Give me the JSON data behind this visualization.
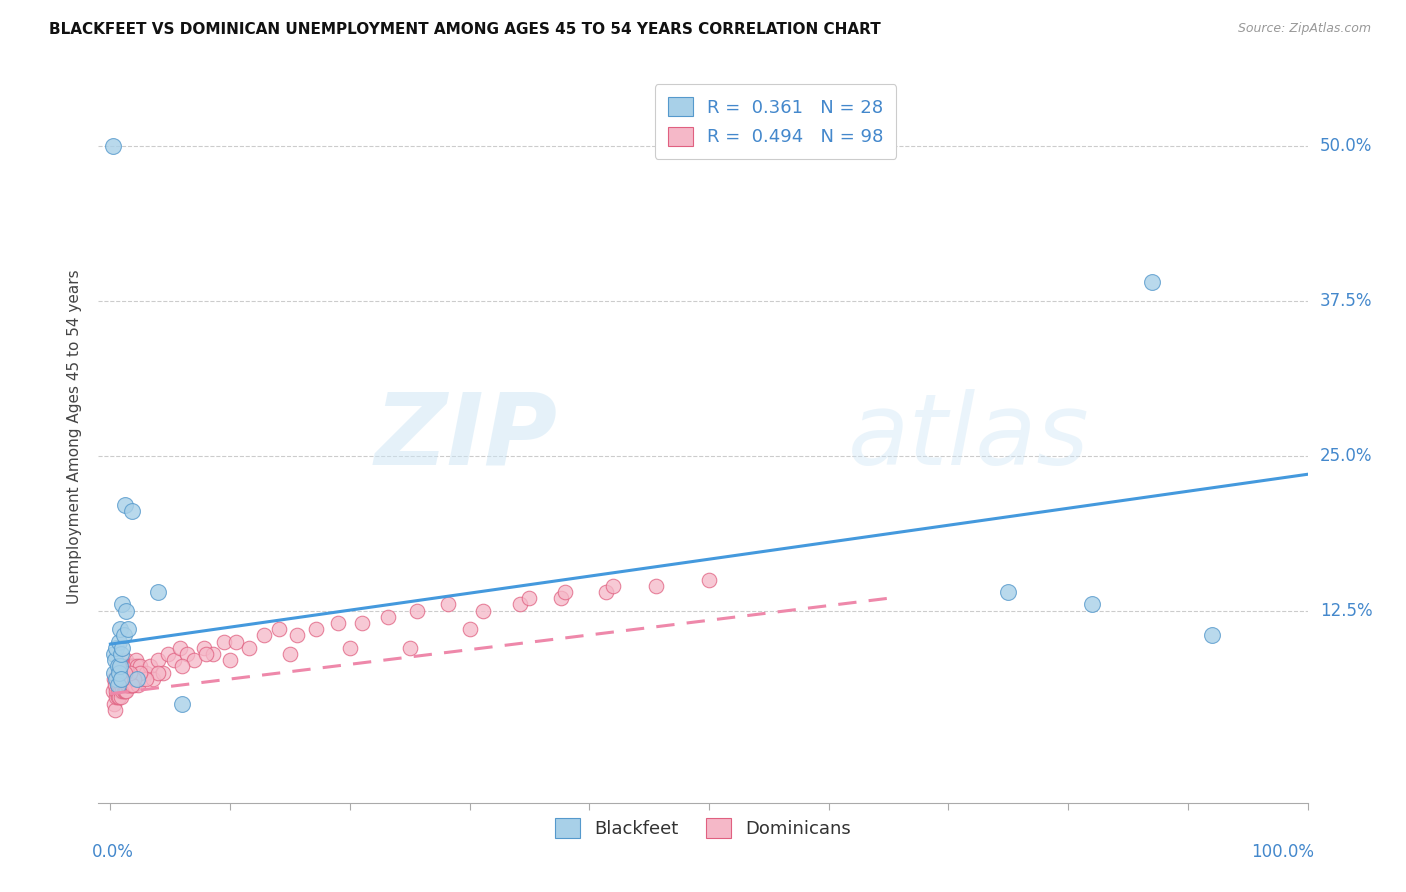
{
  "title": "BLACKFEET VS DOMINICAN UNEMPLOYMENT AMONG AGES 45 TO 54 YEARS CORRELATION CHART",
  "source": "Source: ZipAtlas.com",
  "ylabel": "Unemployment Among Ages 45 to 54 years",
  "ytick_labels": [
    "12.5%",
    "25.0%",
    "37.5%",
    "50.0%"
  ],
  "ytick_values": [
    0.125,
    0.25,
    0.375,
    0.5
  ],
  "blackfeet_color": "#a8d0e8",
  "dominican_color": "#f5b8c8",
  "blackfeet_edge_color": "#5599cc",
  "dominican_edge_color": "#e06080",
  "blackfeet_line_color": "#4499dd",
  "dominican_line_color": "#ee88aa",
  "legend_label_color": "#4488cc",
  "watermark_color": "#ddeeff",
  "legend_bottom_label1": "Blackfeet",
  "legend_bottom_label2": "Dominicans",
  "blackfeet_R": 0.361,
  "blackfeet_N": 28,
  "dominican_R": 0.494,
  "dominican_N": 98,
  "blackfeet_x": [
    0.002,
    0.003,
    0.003,
    0.004,
    0.005,
    0.005,
    0.006,
    0.006,
    0.007,
    0.007,
    0.008,
    0.008,
    0.009,
    0.009,
    0.01,
    0.01,
    0.011,
    0.012,
    0.013,
    0.015,
    0.018,
    0.022,
    0.04,
    0.06,
    0.75,
    0.82,
    0.87,
    0.92
  ],
  "blackfeet_y": [
    0.5,
    0.09,
    0.075,
    0.085,
    0.095,
    0.07,
    0.08,
    0.065,
    0.1,
    0.075,
    0.11,
    0.08,
    0.09,
    0.07,
    0.13,
    0.095,
    0.105,
    0.21,
    0.125,
    0.11,
    0.205,
    0.07,
    0.14,
    0.05,
    0.14,
    0.13,
    0.39,
    0.105
  ],
  "dominican_x": [
    0.002,
    0.003,
    0.003,
    0.004,
    0.004,
    0.005,
    0.005,
    0.005,
    0.006,
    0.006,
    0.006,
    0.007,
    0.007,
    0.007,
    0.008,
    0.008,
    0.008,
    0.009,
    0.009,
    0.009,
    0.01,
    0.01,
    0.01,
    0.011,
    0.011,
    0.012,
    0.012,
    0.012,
    0.013,
    0.013,
    0.013,
    0.014,
    0.014,
    0.015,
    0.015,
    0.016,
    0.016,
    0.017,
    0.017,
    0.018,
    0.018,
    0.019,
    0.02,
    0.02,
    0.021,
    0.022,
    0.023,
    0.025,
    0.027,
    0.03,
    0.033,
    0.036,
    0.04,
    0.044,
    0.048,
    0.053,
    0.058,
    0.064,
    0.07,
    0.078,
    0.086,
    0.095,
    0.105,
    0.116,
    0.128,
    0.141,
    0.156,
    0.172,
    0.19,
    0.21,
    0.232,
    0.256,
    0.282,
    0.311,
    0.342,
    0.376,
    0.414,
    0.456,
    0.5,
    0.3,
    0.35,
    0.25,
    0.42,
    0.38,
    0.2,
    0.15,
    0.1,
    0.08,
    0.06,
    0.04,
    0.03,
    0.025,
    0.02,
    0.018,
    0.016,
    0.012,
    0.01,
    0.008
  ],
  "dominican_y": [
    0.06,
    0.05,
    0.07,
    0.045,
    0.065,
    0.055,
    0.06,
    0.07,
    0.06,
    0.055,
    0.075,
    0.065,
    0.055,
    0.08,
    0.07,
    0.06,
    0.08,
    0.065,
    0.055,
    0.075,
    0.07,
    0.06,
    0.08,
    0.07,
    0.06,
    0.075,
    0.06,
    0.08,
    0.07,
    0.06,
    0.085,
    0.075,
    0.065,
    0.08,
    0.065,
    0.08,
    0.065,
    0.08,
    0.065,
    0.08,
    0.065,
    0.08,
    0.08,
    0.065,
    0.085,
    0.08,
    0.065,
    0.08,
    0.07,
    0.075,
    0.08,
    0.07,
    0.085,
    0.075,
    0.09,
    0.085,
    0.095,
    0.09,
    0.085,
    0.095,
    0.09,
    0.1,
    0.1,
    0.095,
    0.105,
    0.11,
    0.105,
    0.11,
    0.115,
    0.115,
    0.12,
    0.125,
    0.13,
    0.125,
    0.13,
    0.135,
    0.14,
    0.145,
    0.15,
    0.11,
    0.135,
    0.095,
    0.145,
    0.14,
    0.095,
    0.09,
    0.085,
    0.09,
    0.08,
    0.075,
    0.07,
    0.075,
    0.07,
    0.065,
    0.075,
    0.075,
    0.07,
    0.07
  ],
  "xlim": [
    -0.01,
    1.0
  ],
  "ylim": [
    -0.03,
    0.56
  ],
  "bf_line_x0": 0.0,
  "bf_line_y0": 0.098,
  "bf_line_x1": 1.0,
  "bf_line_y1": 0.235,
  "dom_line_x0": 0.0,
  "dom_line_y0": 0.058,
  "dom_line_x1": 0.65,
  "dom_line_y1": 0.135
}
